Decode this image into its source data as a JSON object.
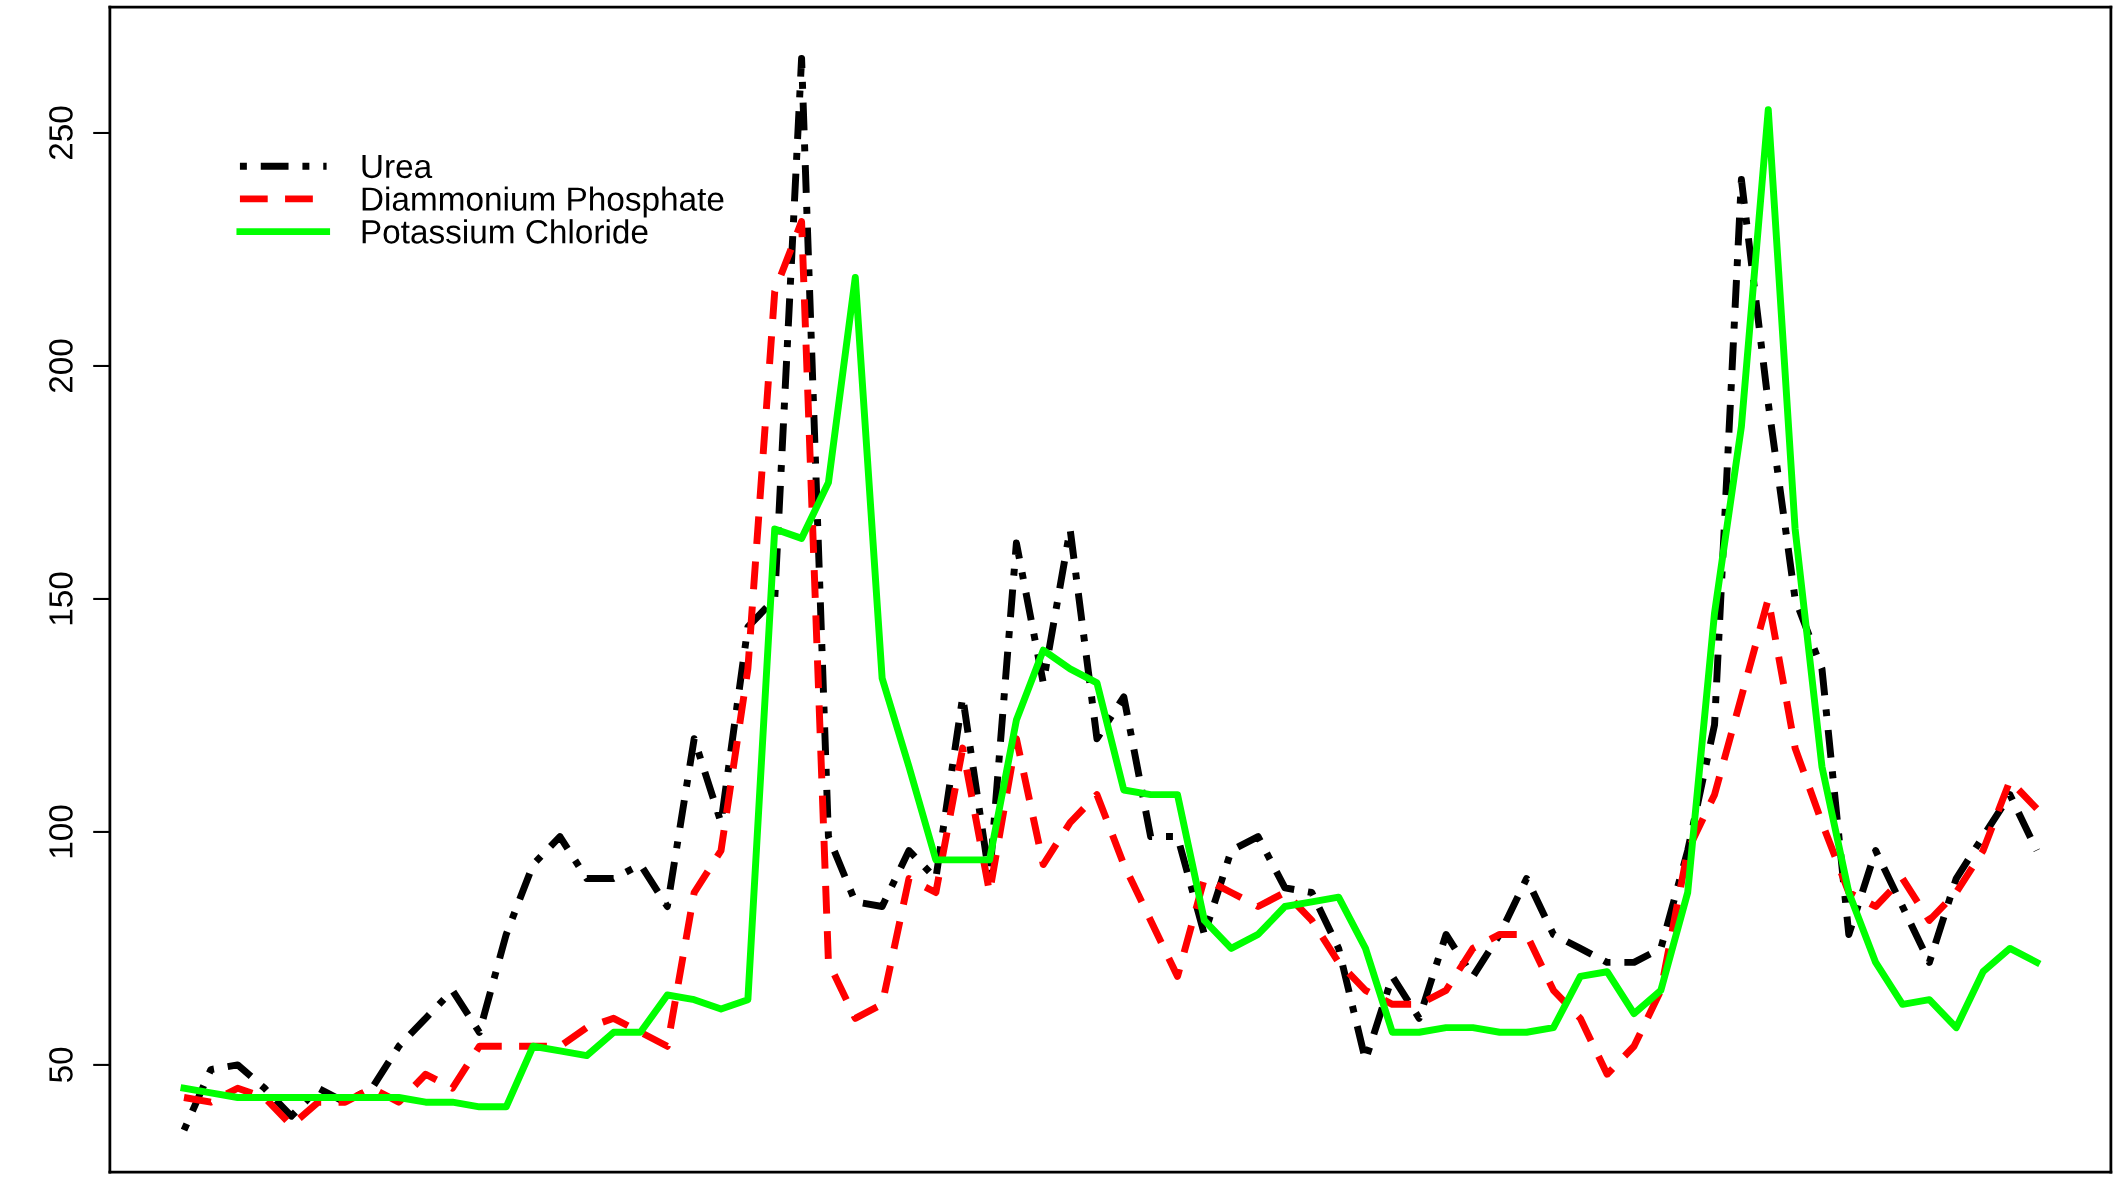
{
  "chart_data": {
    "type": "line",
    "categories": [
      null,
      null,
      null,
      null,
      null,
      null,
      null,
      null,
      null,
      null,
      null,
      null,
      null,
      null,
      null,
      null,
      null,
      null,
      null,
      null,
      null,
      null,
      null,
      null,
      null,
      null,
      null,
      null,
      null,
      null,
      null,
      null,
      null,
      null,
      null,
      null,
      null,
      null,
      null,
      null,
      null,
      null,
      null,
      null,
      null,
      null,
      null,
      null,
      null,
      null,
      null,
      null,
      null,
      null,
      null,
      null,
      null,
      null,
      null,
      null,
      null,
      null,
      null,
      null,
      null,
      null,
      null,
      null,
      null,
      null
    ],
    "series": [
      {
        "name": "Urea",
        "color": "#000000",
        "line_style": "dashdot",
        "values": [
          36,
          49,
          50,
          45,
          39,
          45,
          42,
          45,
          54,
          60,
          66,
          57,
          78,
          93,
          99,
          90,
          90,
          93,
          84,
          120,
          102,
          144,
          150,
          266,
          99,
          85,
          84,
          96,
          90,
          129,
          90,
          162,
          132,
          165,
          120,
          129,
          99,
          99,
          78,
          96,
          99,
          88,
          87,
          75,
          51,
          69,
          60,
          78,
          69,
          78,
          90,
          78,
          75,
          72,
          72,
          75,
          96,
          123,
          240,
          192,
          150,
          135,
          78,
          96,
          84,
          72,
          90,
          99,
          108,
          96
        ]
      },
      {
        "name": "Diammonium Phosphate",
        "color": "#ff0000",
        "line_style": "dashed",
        "values": [
          43,
          42,
          45,
          43,
          37,
          42,
          42,
          45,
          42,
          48,
          45,
          54,
          54,
          54,
          54,
          58,
          60,
          57,
          54,
          87,
          96,
          135,
          216,
          231,
          72,
          60,
          63,
          90,
          87,
          118,
          87,
          120,
          93,
          102,
          108,
          93,
          81,
          69,
          90,
          87,
          84,
          87,
          81,
          72,
          66,
          63,
          63,
          66,
          75,
          78,
          78,
          66,
          60,
          48,
          54,
          66,
          96,
          108,
          129,
          150,
          118,
          102,
          87,
          84,
          90,
          81,
          87,
          96,
          111,
          105
        ]
      },
      {
        "name": "Potassium Chloride",
        "color": "#00ff00",
        "line_style": "solid",
        "values": [
          45,
          44,
          43,
          43,
          43,
          43,
          43,
          43,
          43,
          42,
          42,
          41,
          41,
          54,
          53,
          52,
          57,
          57,
          65,
          64,
          62,
          64,
          165,
          163,
          175,
          219,
          133,
          114,
          94,
          94,
          94,
          124,
          139,
          135,
          132,
          109,
          108,
          108,
          81,
          75,
          78,
          84,
          85,
          86,
          75,
          57,
          57,
          58,
          58,
          57,
          57,
          58,
          69,
          70,
          61,
          66,
          87,
          147,
          187,
          255,
          165,
          114,
          87,
          72,
          63,
          64,
          58,
          70,
          75,
          72
        ]
      }
    ],
    "ylim": [
      27,
      277
    ],
    "yticks": [
      50,
      100,
      150,
      200,
      250
    ],
    "tick_labels": "y",
    "grid": false,
    "legend": "top left",
    "marker": "none"
  }
}
